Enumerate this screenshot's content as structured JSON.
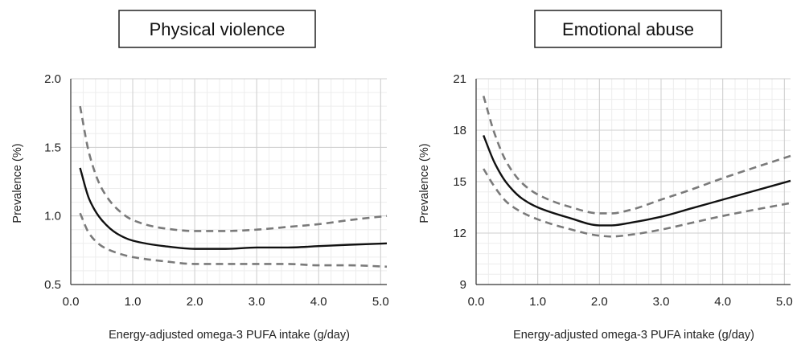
{
  "chart_data": [
    {
      "type": "line",
      "title": "Physical violence",
      "xlabel": "Energy-adjusted omega-3 PUFA intake (g/day)",
      "ylabel": "Prevalence (%)",
      "xlim": [
        0.0,
        5.1
      ],
      "ylim": [
        0.5,
        2.0
      ],
      "xticks": [
        "0.0",
        "1.0",
        "2.0",
        "3.0",
        "4.0",
        "5.0"
      ],
      "yticks": [
        "0.5",
        "1.0",
        "1.5",
        "2.0"
      ],
      "grid": true,
      "series": [
        {
          "style": "solid",
          "x": [
            0.15,
            0.3,
            0.5,
            0.75,
            1.0,
            1.5,
            2.0,
            2.5,
            3.0,
            3.5,
            4.0,
            4.5,
            5.1
          ],
          "y": [
            1.35,
            1.12,
            0.97,
            0.87,
            0.82,
            0.78,
            0.76,
            0.76,
            0.77,
            0.77,
            0.78,
            0.79,
            0.8
          ]
        },
        {
          "style": "dashed",
          "x": [
            0.15,
            0.3,
            0.5,
            0.75,
            1.0,
            1.5,
            2.0,
            2.5,
            3.0,
            3.5,
            4.0,
            4.5,
            5.1
          ],
          "y": [
            1.8,
            1.45,
            1.2,
            1.05,
            0.97,
            0.91,
            0.89,
            0.89,
            0.9,
            0.92,
            0.94,
            0.97,
            1.0
          ]
        },
        {
          "style": "dashed",
          "x": [
            0.15,
            0.3,
            0.5,
            0.75,
            1.0,
            1.5,
            2.0,
            2.5,
            3.0,
            3.5,
            4.0,
            4.5,
            5.1
          ],
          "y": [
            1.02,
            0.87,
            0.78,
            0.73,
            0.7,
            0.67,
            0.65,
            0.65,
            0.65,
            0.65,
            0.64,
            0.64,
            0.63
          ]
        }
      ]
    },
    {
      "type": "line",
      "title": "Emotional abuse",
      "xlabel": "Energy-adjusted omega-3 PUFA intake (g/day)",
      "ylabel": "Prevalence (%)",
      "xlim": [
        0.0,
        5.1
      ],
      "ylim": [
        9,
        21
      ],
      "xticks": [
        "0.0",
        "1.0",
        "2.0",
        "3.0",
        "4.0",
        "5.0"
      ],
      "yticks": [
        "9",
        "12",
        "15",
        "18",
        "21"
      ],
      "grid": true,
      "series": [
        {
          "style": "solid",
          "x": [
            0.12,
            0.3,
            0.5,
            0.75,
            1.0,
            1.5,
            2.0,
            2.2,
            2.5,
            3.0,
            3.5,
            4.0,
            4.5,
            5.1
          ],
          "y": [
            17.7,
            16.1,
            14.9,
            14.0,
            13.5,
            12.9,
            12.45,
            12.45,
            12.6,
            12.95,
            13.45,
            13.95,
            14.45,
            15.05
          ]
        },
        {
          "style": "dashed",
          "x": [
            0.12,
            0.3,
            0.5,
            0.75,
            1.0,
            1.5,
            2.0,
            2.2,
            2.5,
            3.0,
            3.5,
            4.0,
            4.5,
            5.1
          ],
          "y": [
            20.0,
            17.8,
            16.1,
            14.9,
            14.25,
            13.55,
            13.15,
            13.15,
            13.35,
            13.95,
            14.55,
            15.2,
            15.8,
            16.5
          ]
        },
        {
          "style": "dashed",
          "x": [
            0.12,
            0.3,
            0.5,
            0.75,
            1.0,
            1.5,
            2.0,
            2.2,
            2.5,
            3.0,
            3.5,
            4.0,
            4.5,
            5.1
          ],
          "y": [
            15.75,
            14.7,
            13.8,
            13.2,
            12.8,
            12.25,
            11.85,
            11.8,
            11.9,
            12.2,
            12.6,
            13.0,
            13.35,
            13.75
          ]
        }
      ]
    }
  ]
}
